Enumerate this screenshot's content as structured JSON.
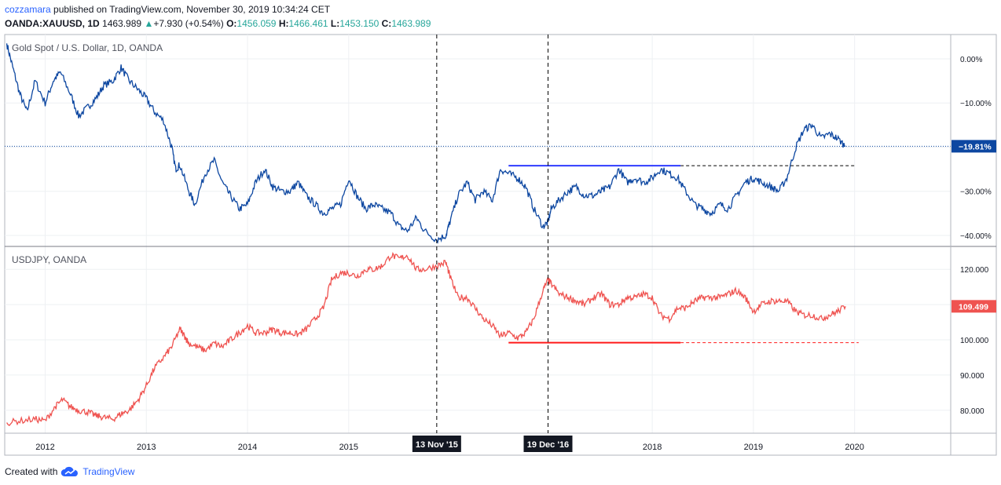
{
  "header": {
    "author": "cozzamara",
    "published": "published on TradingView.com, November 30, 2019 10:34:24 CET",
    "symbol": "OANDA:XAUUSD, 1D",
    "last": "1463.989",
    "change_arrow": "▲",
    "change": "+7.930 (+0.54%)",
    "o_label": "O:",
    "o_value": "1456.059",
    "h_label": "H:",
    "h_value": "1466.461",
    "l_label": "L:",
    "l_value": "1453.150",
    "c_label": "C:",
    "c_value": "1463.989"
  },
  "footer": {
    "created_with": "Created with",
    "brand": "TradingView",
    "logo_icon": "tradingview-cloud-icon"
  },
  "chart_data": [
    {
      "type": "line",
      "title": "Gold Spot / U.S. Dollar, 1D, OANDA",
      "color": "#0d47a1",
      "units": "percent change",
      "y_ticks": [
        "0.00%",
        "−10.00%",
        "−20.00%",
        "−30.00%",
        "−40.00%"
      ],
      "y_tick_values": [
        0,
        -10,
        -20,
        -30,
        -40
      ],
      "ylim": [
        -42.5,
        5.5
      ],
      "last_label": "−19.81%",
      "last_value": -19.81,
      "horizontal_level": -24.2,
      "x": [
        2011.62,
        2011.68,
        2011.75,
        2011.82,
        2011.9,
        2012.0,
        2012.08,
        2012.15,
        2012.25,
        2012.33,
        2012.42,
        2012.5,
        2012.58,
        2012.67,
        2012.75,
        2012.83,
        2012.92,
        2013.0,
        2013.08,
        2013.17,
        2013.25,
        2013.29,
        2013.33,
        2013.42,
        2013.48,
        2013.58,
        2013.67,
        2013.75,
        2013.83,
        2013.92,
        2014.0,
        2014.08,
        2014.17,
        2014.25,
        2014.33,
        2014.42,
        2014.5,
        2014.58,
        2014.67,
        2014.75,
        2014.83,
        2014.92,
        2015.0,
        2015.08,
        2015.17,
        2015.25,
        2015.33,
        2015.42,
        2015.5,
        2015.58,
        2015.67,
        2015.75,
        2015.87,
        2015.96,
        2016.0,
        2016.08,
        2016.17,
        2016.25,
        2016.33,
        2016.42,
        2016.5,
        2016.58,
        2016.67,
        2016.75,
        2016.83,
        2016.92,
        2016.97,
        2017.0,
        2017.08,
        2017.17,
        2017.25,
        2017.33,
        2017.42,
        2017.5,
        2017.58,
        2017.67,
        2017.75,
        2017.83,
        2017.92,
        2018.0,
        2018.08,
        2018.17,
        2018.25,
        2018.33,
        2018.42,
        2018.5,
        2018.58,
        2018.67,
        2018.75,
        2018.83,
        2018.92,
        2019.0,
        2019.08,
        2019.17,
        2019.25,
        2019.33,
        2019.42,
        2019.5,
        2019.58,
        2019.67,
        2019.75,
        2019.83,
        2019.91
      ],
      "y": [
        3.5,
        -2,
        -8,
        -12,
        -5,
        -10,
        -5,
        -3,
        -8,
        -13,
        -11,
        -9,
        -6,
        -5,
        -2,
        -5,
        -7,
        -9,
        -12,
        -14,
        -20,
        -25,
        -24,
        -30,
        -33,
        -26,
        -23,
        -28,
        -31,
        -34,
        -33,
        -28,
        -25,
        -29,
        -30,
        -30,
        -28,
        -31,
        -33,
        -35,
        -34,
        -33,
        -27,
        -31,
        -34,
        -33,
        -34,
        -35,
        -38,
        -39,
        -36,
        -39,
        -41,
        -40,
        -37,
        -31,
        -28,
        -32,
        -30,
        -32,
        -25,
        -26,
        -27,
        -29,
        -34,
        -38,
        -37,
        -34,
        -32,
        -30,
        -29,
        -31,
        -31,
        -30,
        -29,
        -25,
        -28,
        -27,
        -28,
        -27,
        -25,
        -26,
        -27,
        -30,
        -33,
        -34,
        -35,
        -33,
        -34,
        -31,
        -28,
        -27,
        -28,
        -29,
        -30,
        -27,
        -20,
        -16,
        -15,
        -18,
        -17,
        -18,
        -19.81
      ]
    },
    {
      "type": "line",
      "title": "USDJPY, OANDA",
      "color": "#ef5350",
      "y_ticks": [
        "120.000",
        "110.000",
        "100.000",
        "90.000",
        "80.000"
      ],
      "y_tick_values": [
        120,
        110,
        100,
        90,
        80
      ],
      "ylim": [
        73.5,
        126.5
      ],
      "last_label": "109.499",
      "last_value": 109.499,
      "horizontal_level": 99.2,
      "x": [
        2011.62,
        2011.75,
        2011.9,
        2012.0,
        2012.1,
        2012.17,
        2012.25,
        2012.33,
        2012.42,
        2012.5,
        2012.58,
        2012.67,
        2012.75,
        2012.83,
        2012.92,
        2013.0,
        2013.08,
        2013.17,
        2013.25,
        2013.33,
        2013.38,
        2013.42,
        2013.5,
        2013.58,
        2013.67,
        2013.75,
        2013.83,
        2013.92,
        2014.0,
        2014.08,
        2014.17,
        2014.25,
        2014.33,
        2014.42,
        2014.5,
        2014.58,
        2014.67,
        2014.75,
        2014.83,
        2014.92,
        2015.0,
        2015.08,
        2015.17,
        2015.25,
        2015.33,
        2015.42,
        2015.5,
        2015.58,
        2015.67,
        2015.75,
        2015.87,
        2015.96,
        2016.0,
        2016.08,
        2016.17,
        2016.25,
        2016.33,
        2016.42,
        2016.5,
        2016.58,
        2016.67,
        2016.75,
        2016.83,
        2016.92,
        2016.97,
        2017.0,
        2017.08,
        2017.17,
        2017.25,
        2017.33,
        2017.42,
        2017.5,
        2017.58,
        2017.67,
        2017.75,
        2017.83,
        2017.92,
        2018.0,
        2018.08,
        2018.17,
        2018.25,
        2018.33,
        2018.42,
        2018.5,
        2018.58,
        2018.67,
        2018.75,
        2018.83,
        2018.92,
        2019.0,
        2019.08,
        2019.17,
        2019.25,
        2019.33,
        2019.42,
        2019.5,
        2019.58,
        2019.67,
        2019.75,
        2019.83,
        2019.91
      ],
      "y": [
        76.5,
        77,
        77.5,
        77,
        81,
        83,
        81,
        80,
        79.5,
        78.5,
        78,
        77.5,
        79,
        80,
        83,
        87,
        92,
        95,
        98,
        103,
        101,
        99,
        98,
        97,
        99,
        98,
        100,
        102,
        104,
        102,
        102,
        103,
        102,
        102,
        101.5,
        103,
        106,
        109,
        117,
        119,
        119,
        118,
        120,
        120,
        121,
        124,
        123,
        124,
        120,
        120,
        121,
        122,
        118,
        112,
        112,
        109,
        106,
        104,
        101,
        102,
        100.5,
        102,
        106,
        114,
        117,
        116,
        113,
        112,
        111,
        110,
        112,
        113,
        110,
        110,
        112,
        112,
        113,
        112,
        107,
        106,
        109,
        109,
        111,
        112,
        112,
        112,
        113,
        114,
        112,
        108,
        110,
        111,
        111,
        111,
        108,
        107,
        107,
        106,
        107,
        108,
        109.499
      ]
    }
  ],
  "x_axis": {
    "ticks": [
      "2012",
      "2013",
      "2014",
      "2015",
      "2018",
      "2019",
      "2020"
    ],
    "tick_values": [
      2012.0,
      2013.0,
      2014.0,
      2015.0,
      2018.0,
      2019.0,
      2020.0
    ],
    "xlim": [
      2011.6,
      2020.95
    ]
  },
  "crosshairs": [
    {
      "label": "13 Nov '15",
      "x": 2015.87
    },
    {
      "label": "19 Dec '16",
      "x": 2016.97
    }
  ],
  "segments": [
    {
      "panel": 0,
      "x_start": 2016.58,
      "x_solid_end": 2018.28,
      "x_dash_end": 2020.0
    },
    {
      "panel": 1,
      "x_start": 2016.58,
      "x_solid_end": 2018.28,
      "x_dash_end": 2020.04
    }
  ],
  "colors": {
    "grid": "#eef0f3",
    "axis_text": "#131722",
    "crosshair": "#000000",
    "last_line_gold": "#0d47a1"
  }
}
